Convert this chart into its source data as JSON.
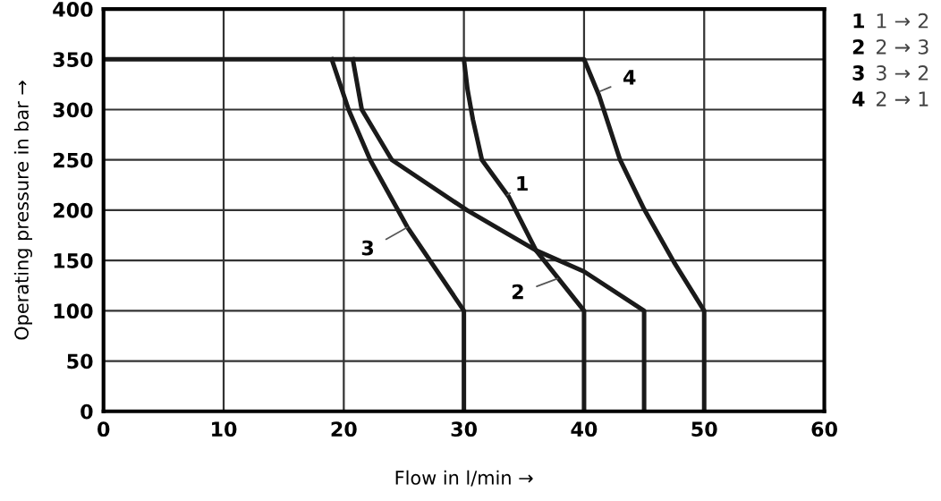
{
  "chart_data": {
    "type": "line",
    "xlabel": "Flow in l/min →",
    "ylabel": "Operating pressure in bar →",
    "xlim": [
      0,
      60
    ],
    "ylim": [
      0,
      400
    ],
    "xticks": [
      0,
      10,
      20,
      30,
      40,
      50,
      60
    ],
    "yticks": [
      0,
      50,
      100,
      150,
      200,
      250,
      300,
      350,
      400
    ],
    "grid": true,
    "marker": "none",
    "line_style": "solid",
    "legend": false,
    "series": [
      {
        "color": "#1a1a1a",
        "x": [
          30,
          30.3,
          30.75,
          31.5,
          33.75,
          36,
          40,
          40
        ],
        "values": [
          350,
          320,
          290,
          250,
          213,
          160,
          100,
          0
        ]
      },
      {
        "color": "#1a1a1a",
        "x": [
          20.75,
          21.5,
          24,
          30.25,
          36,
          40,
          45,
          45
        ],
        "values": [
          350,
          300,
          250,
          200,
          160,
          139,
          100,
          0
        ]
      },
      {
        "color": "#1a1a1a",
        "x": [
          19,
          20.4,
          22.2,
          25.3,
          30,
          30
        ],
        "values": [
          350,
          300,
          250,
          183,
          100,
          0
        ]
      },
      {
        "color": "#1a1a1a",
        "x": [
          0,
          40,
          41.25,
          43,
          45,
          47.5,
          50,
          50
        ],
        "values": [
          350,
          350,
          314,
          250,
          201,
          148,
          100,
          0
        ]
      }
    ],
    "annotations": [
      {
        "text": "1",
        "x": 33.6,
        "y": 215
      },
      {
        "text": "2",
        "x": 37.8,
        "y": 132
      },
      {
        "text": "3",
        "x": 25.3,
        "y": 183
      },
      {
        "text": "4",
        "x": 41.3,
        "y": 318
      },
      "1 1 → 2",
      "2 2 → 3",
      "3 3 → 2",
      "4 2 → 1"
    ]
  }
}
